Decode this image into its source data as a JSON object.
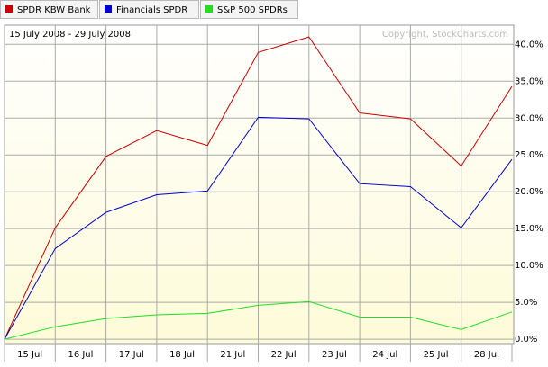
{
  "chart_data": {
    "type": "line",
    "subtitle": "15 July 2008 - 29 July 2008",
    "copyright": "Copyright, StockCharts.com",
    "categories": [
      "15 Jul",
      "16 Jul",
      "17 Jul",
      "18 Jul",
      "21 Jul",
      "22 Jul",
      "23 Jul",
      "24 Jul",
      "25 Jul",
      "28 Jul",
      null
    ],
    "series": [
      {
        "name": "SPDR KBW Bank",
        "color": "#cc0000",
        "values": [
          0,
          15.1,
          24.8,
          28.3,
          26.3,
          38.9,
          41.0,
          30.7,
          29.9,
          23.5,
          34.3
        ]
      },
      {
        "name": "Financials SPDR",
        "color": "#0000cc",
        "values": [
          0,
          12.3,
          17.2,
          19.6,
          20.1,
          30.1,
          29.9,
          21.1,
          20.7,
          15.1,
          24.4
        ]
      },
      {
        "name": "S&P 500 SPDRs",
        "color": "#22dd22",
        "values": [
          0,
          1.7,
          2.8,
          3.3,
          3.5,
          4.6,
          5.1,
          3.0,
          3.0,
          1.3,
          3.7
        ]
      }
    ],
    "ylim": [
      -0.6,
      42.6
    ],
    "yticks": [
      {
        "value": 0,
        "label": "0.0%"
      },
      {
        "value": 5,
        "label": "5.0%"
      },
      {
        "value": 10,
        "label": "10.0%"
      },
      {
        "value": 15,
        "label": "15.0%"
      },
      {
        "value": 20,
        "label": "20.0%"
      },
      {
        "value": 25,
        "label": "25.0%"
      },
      {
        "value": 30,
        "label": "30.0%"
      },
      {
        "value": 35,
        "label": "35.0%"
      },
      {
        "value": 40,
        "label": "40.0%"
      }
    ],
    "grid": true
  }
}
